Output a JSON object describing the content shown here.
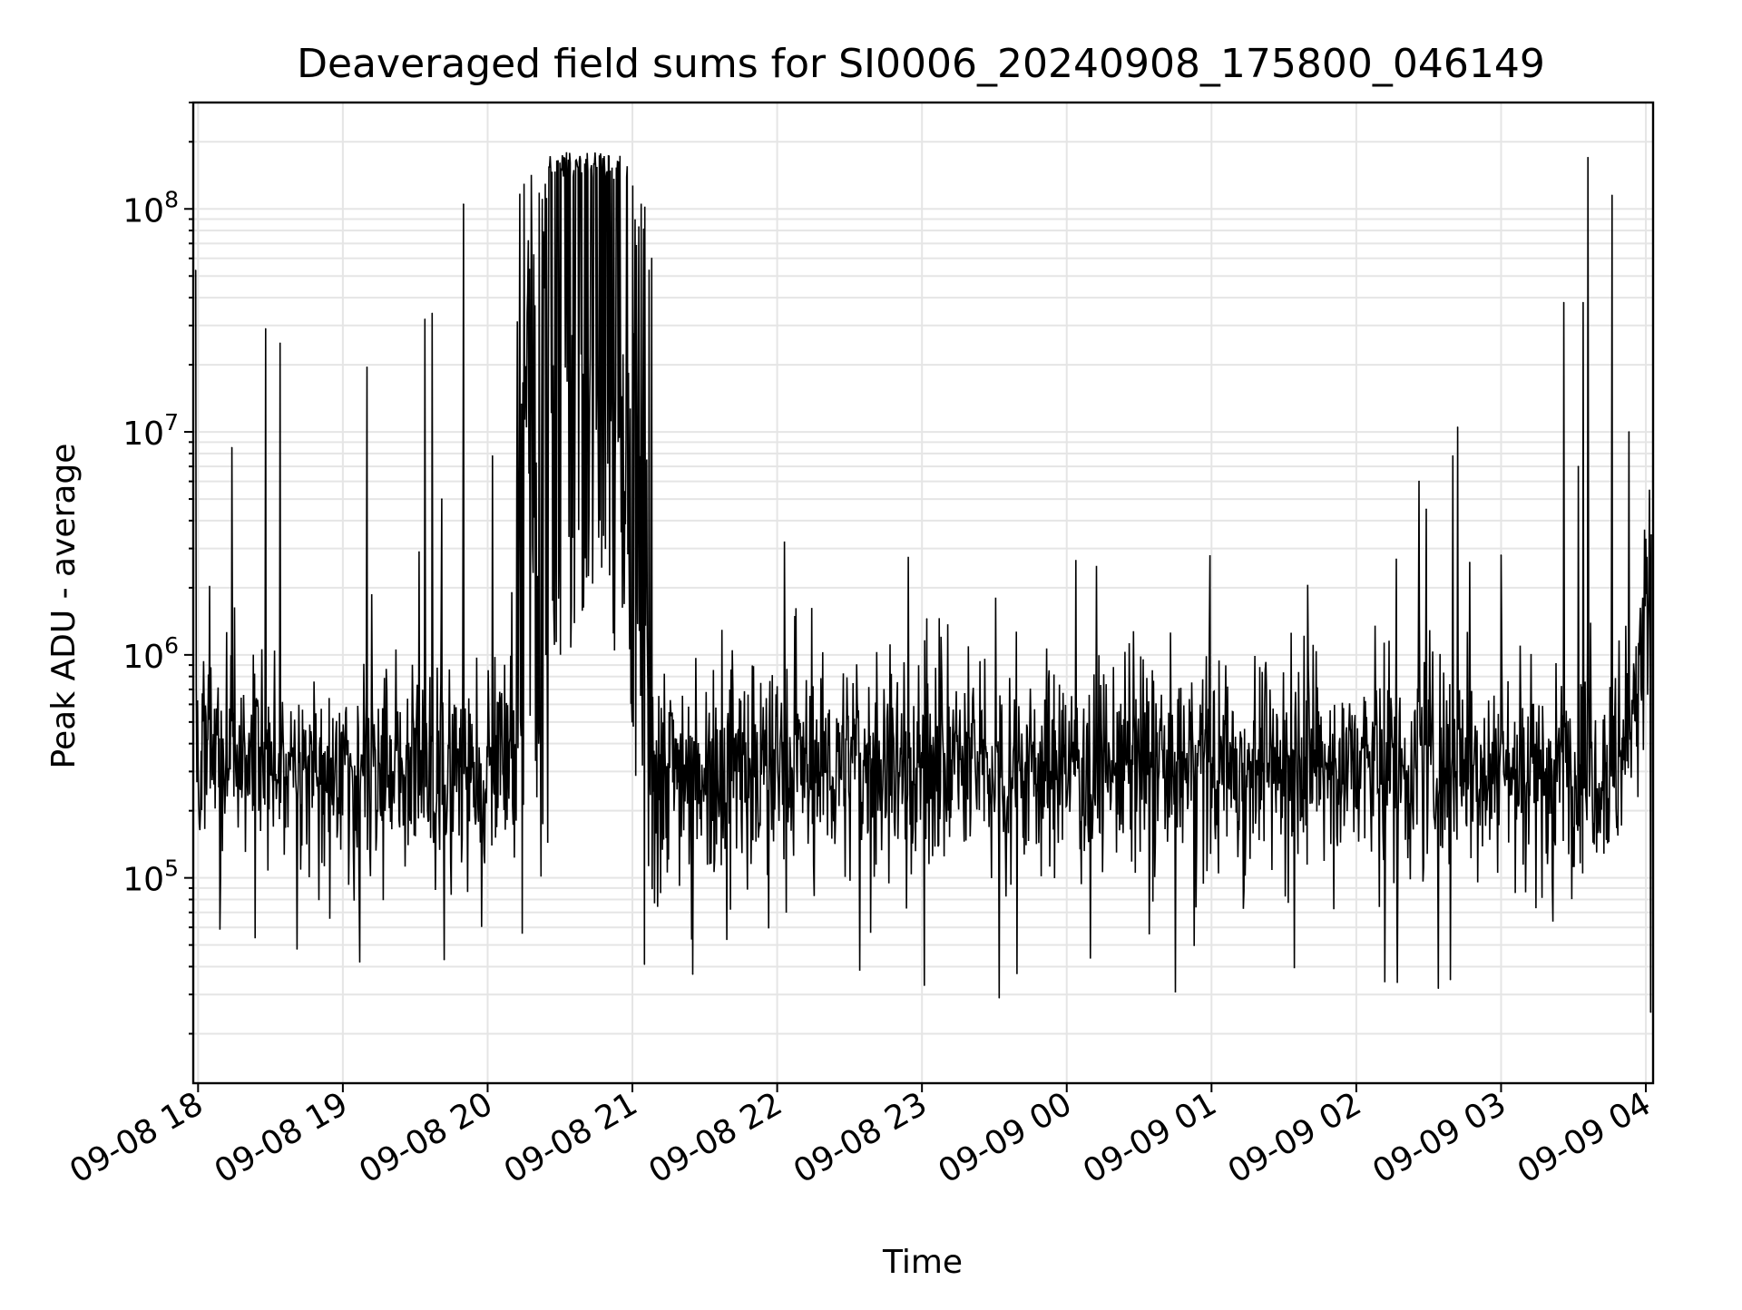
{
  "chart_data": {
    "type": "line",
    "title": "Deaveraged field sums for SI0006_20240908_175800_046149",
    "xlabel": "Time",
    "ylabel": "Peak ADU - average",
    "y_scale": "log",
    "ylim": [
      12000,
      300000000
    ],
    "xlim": [
      "2024-09-08 17:58",
      "2024-09-09 04:03"
    ],
    "x_ticks": [
      {
        "label": "09-08 18",
        "time": "2024-09-08 18:00"
      },
      {
        "label": "09-08 19",
        "time": "2024-09-08 19:00"
      },
      {
        "label": "09-08 20",
        "time": "2024-09-08 20:00"
      },
      {
        "label": "09-08 21",
        "time": "2024-09-08 21:00"
      },
      {
        "label": "09-08 22",
        "time": "2024-09-08 22:00"
      },
      {
        "label": "09-08 23",
        "time": "2024-09-08 23:00"
      },
      {
        "label": "09-09 00",
        "time": "2024-09-09 00:00"
      },
      {
        "label": "09-09 01",
        "time": "2024-09-09 01:00"
      },
      {
        "label": "09-09 02",
        "time": "2024-09-09 02:00"
      },
      {
        "label": "09-09 03",
        "time": "2024-09-09 03:00"
      },
      {
        "label": "09-09 04",
        "time": "2024-09-09 04:00"
      }
    ],
    "y_ticks": [
      {
        "value": 100000,
        "base": "10",
        "exp": "5"
      },
      {
        "value": 1000000,
        "base": "10",
        "exp": "6"
      },
      {
        "value": 10000000,
        "base": "10",
        "exp": "7"
      },
      {
        "value": 100000000,
        "base": "10",
        "exp": "8"
      }
    ],
    "grid": true,
    "legend": "none",
    "line_color": "#000000",
    "grid_color": "#e5e5e5",
    "baseline_level": 320000,
    "burst": {
      "start": "2024-09-08 20:12",
      "end": "2024-09-08 21:07",
      "plateau_start": "2024-09-08 20:25",
      "plateau_end": "2024-09-08 20:58",
      "peak": 180000000
    },
    "spikes": [
      {
        "time": "2024-09-08 17:59",
        "value": 53000000
      },
      {
        "time": "2024-09-08 18:14",
        "value": 8500000
      },
      {
        "time": "2024-09-08 18:28",
        "value": 29000000
      },
      {
        "time": "2024-09-08 18:34",
        "value": 25000000
      },
      {
        "time": "2024-09-08 19:10",
        "value": 19500000
      },
      {
        "time": "2024-09-08 19:34",
        "value": 32000000
      },
      {
        "time": "2024-09-08 19:37",
        "value": 34000000
      },
      {
        "time": "2024-09-08 19:41",
        "value": 5000000
      },
      {
        "time": "2024-09-08 19:50",
        "value": 105000000
      },
      {
        "time": "2024-09-08 20:02",
        "value": 7800000
      },
      {
        "time": "2024-09-08 20:10",
        "value": 1900000
      },
      {
        "time": "2024-09-08 21:08",
        "value": 60000000
      },
      {
        "time": "2024-09-08 23:02",
        "value": 1450000
      },
      {
        "time": "2024-09-09 01:33",
        "value": 1250000
      },
      {
        "time": "2024-09-09 02:26",
        "value": 6000000
      },
      {
        "time": "2024-09-09 02:29",
        "value": 4500000
      },
      {
        "time": "2024-09-09 02:40",
        "value": 7800000
      },
      {
        "time": "2024-09-09 02:42",
        "value": 10500000
      },
      {
        "time": "2024-09-09 02:47",
        "value": 2600000
      },
      {
        "time": "2024-09-09 03:00",
        "value": 2800000
      },
      {
        "time": "2024-09-09 03:26",
        "value": 38000000
      },
      {
        "time": "2024-09-09 03:32",
        "value": 7000000
      },
      {
        "time": "2024-09-09 03:34",
        "value": 38000000
      },
      {
        "time": "2024-09-09 03:36",
        "value": 170000000
      },
      {
        "time": "2024-09-09 03:46",
        "value": 115000000
      },
      {
        "time": "2024-09-09 03:53",
        "value": 10000000
      },
      {
        "time": "2024-09-09 04:00",
        "value": 3300000
      }
    ],
    "dips": [
      {
        "time": "2024-09-08 18:41",
        "value": 48000.0
      },
      {
        "time": "2024-09-08 19:07",
        "value": 42000
      },
      {
        "time": "2024-09-08 19:42",
        "value": 43000
      },
      {
        "time": "2024-09-08 21:05",
        "value": 41000
      },
      {
        "time": "2024-09-08 21:25",
        "value": 37000
      },
      {
        "time": "2024-09-08 23:01",
        "value": 33000
      },
      {
        "time": "2024-09-08 23:32",
        "value": 29000
      },
      {
        "time": "2024-09-09 02:17",
        "value": 34000
      },
      {
        "time": "2024-09-09 02:34",
        "value": 32000
      },
      {
        "time": "2024-09-09 02:39",
        "value": 35000
      },
      {
        "time": "2024-09-09 04:02",
        "value": 25000
      }
    ]
  }
}
